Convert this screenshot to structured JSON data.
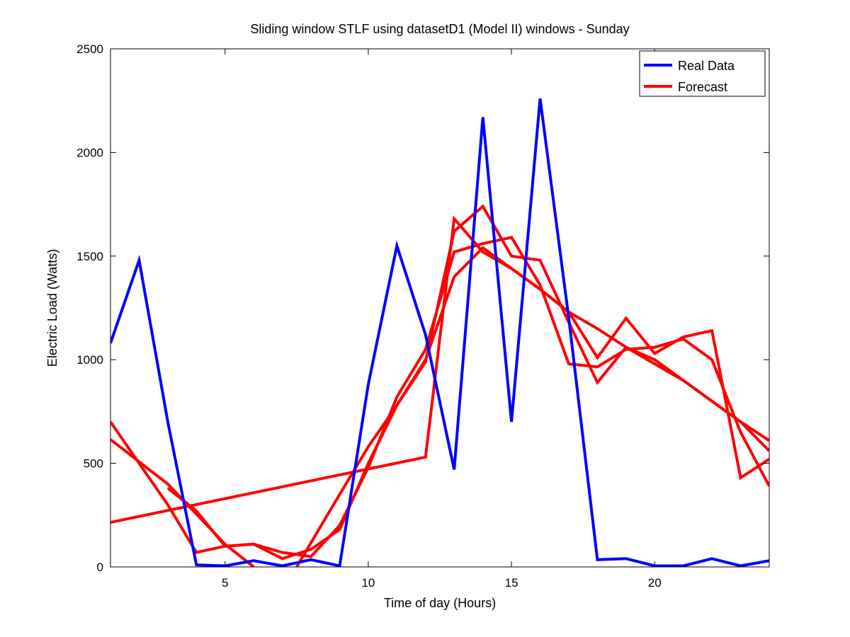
{
  "chart_data": {
    "type": "line",
    "title": "Sliding window STLF using datasetD1 (Model II) windows - Sunday",
    "xlabel": "Time of day (Hours)",
    "ylabel": "Electric Load (Watts)",
    "xlim": [
      1,
      24
    ],
    "ylim": [
      0,
      2500
    ],
    "xticks": [
      5,
      10,
      15,
      20
    ],
    "yticks": [
      0,
      500,
      1000,
      1500,
      2000,
      2500
    ],
    "grid": false,
    "legend_position": "top-right",
    "legend": [
      {
        "label": "Real Data",
        "color": "#0000ff"
      },
      {
        "label": "Forecast",
        "color": "#ff0000"
      }
    ],
    "series": [
      {
        "name": "Real Data",
        "color": "#0000ff",
        "points": [
          [
            1,
            1080
          ],
          [
            2,
            1480
          ],
          [
            3,
            700
          ],
          [
            4,
            10
          ],
          [
            5,
            5
          ],
          [
            6,
            30
          ],
          [
            7,
            5
          ],
          [
            8,
            35
          ],
          [
            9,
            5
          ],
          [
            10,
            880
          ],
          [
            11,
            1550
          ],
          [
            12,
            1120
          ],
          [
            13,
            470
          ],
          [
            14,
            2170
          ],
          [
            15,
            700
          ],
          [
            16,
            2260
          ],
          [
            17,
            1200
          ],
          [
            18,
            35
          ],
          [
            19,
            40
          ],
          [
            20,
            5
          ],
          [
            21,
            5
          ],
          [
            22,
            40
          ],
          [
            23,
            5
          ],
          [
            24,
            30
          ]
        ]
      },
      {
        "name": "Forecast",
        "color": "#ff0000",
        "points": [
          [
            1,
            215
          ],
          [
            12,
            530
          ],
          [
            13,
            1680
          ],
          [
            14,
            1520
          ],
          [
            15,
            1440
          ],
          [
            16,
            1340
          ],
          [
            17,
            1230
          ],
          [
            18,
            1010
          ],
          [
            19,
            1200
          ],
          [
            20,
            1030
          ],
          [
            21,
            1110
          ],
          [
            22,
            1140
          ],
          [
            23,
            430
          ],
          [
            24,
            520
          ]
        ]
      },
      {
        "name": "Forecast",
        "color": "#ff0000",
        "points": [
          [
            1,
            700
          ],
          [
            2,
            500
          ],
          [
            3,
            300
          ],
          [
            4,
            70
          ],
          [
            5,
            100
          ],
          [
            6,
            110
          ],
          [
            7,
            70
          ],
          [
            8,
            50
          ],
          [
            9,
            200
          ],
          [
            10,
            480
          ],
          [
            11,
            820
          ],
          [
            12,
            1050
          ],
          [
            13,
            1520
          ],
          [
            14,
            1560
          ],
          [
            15,
            1590
          ],
          [
            16,
            1360
          ],
          [
            17,
            980
          ],
          [
            18,
            965
          ],
          [
            19,
            1050
          ],
          [
            20,
            1060
          ],
          [
            21,
            1100
          ],
          [
            22,
            1000
          ],
          [
            23,
            650
          ],
          [
            24,
            390
          ]
        ]
      },
      {
        "name": "Forecast",
        "color": "#ff0000",
        "points": [
          [
            1,
            615
          ],
          [
            3,
            400
          ],
          [
            5,
            110
          ],
          [
            6,
            0
          ]
        ]
      },
      {
        "name": "Forecast",
        "color": "#ff0000",
        "points": [
          [
            3,
            380
          ],
          [
            4,
            270
          ],
          [
            5,
            100
          ],
          [
            6,
            110
          ],
          [
            7,
            40
          ],
          [
            8,
            85
          ],
          [
            9,
            180
          ],
          [
            10,
            500
          ],
          [
            11,
            780
          ],
          [
            12,
            990
          ],
          [
            13,
            1620
          ],
          [
            14,
            1740
          ],
          [
            15,
            1500
          ],
          [
            16,
            1480
          ],
          [
            17,
            1180
          ],
          [
            18,
            890
          ],
          [
            19,
            1060
          ],
          [
            20,
            1000
          ],
          [
            21,
            900
          ],
          [
            22,
            800
          ],
          [
            23,
            700
          ],
          [
            24,
            610
          ]
        ]
      },
      {
        "name": "Forecast",
        "color": "#ff0000",
        "points": [
          [
            7.5,
            0
          ],
          [
            9,
            350
          ],
          [
            10,
            580
          ],
          [
            11,
            780
          ],
          [
            12,
            1000
          ],
          [
            13,
            1400
          ],
          [
            14,
            1540
          ],
          [
            15,
            1440
          ],
          [
            16,
            1340
          ],
          [
            17,
            1230
          ],
          [
            18,
            1150
          ],
          [
            19,
            1060
          ],
          [
            20,
            980
          ],
          [
            21,
            900
          ],
          [
            22,
            800
          ],
          [
            23,
            700
          ],
          [
            24,
            560
          ]
        ]
      }
    ]
  }
}
